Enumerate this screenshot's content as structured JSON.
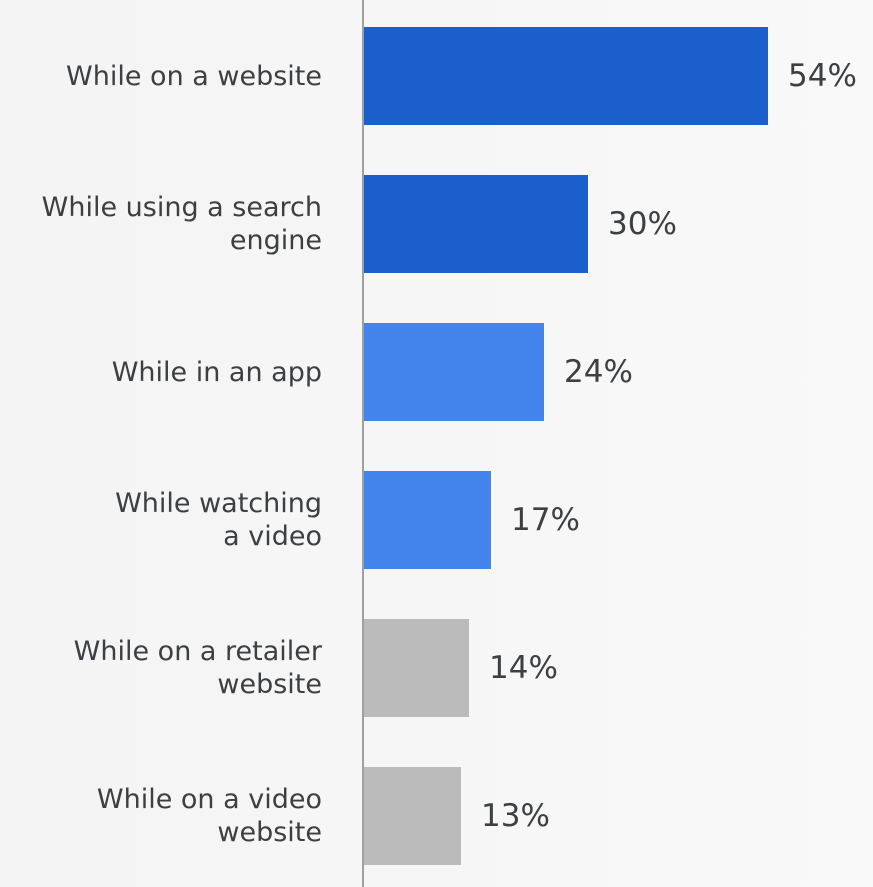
{
  "chart_data": {
    "type": "bar",
    "orientation": "horizontal",
    "categories": [
      "While on a website",
      "While using a search\nengine",
      "While in an app",
      "While watching\na video",
      "While on a retailer\nwebsite",
      "While on a video\nwebsite"
    ],
    "values": [
      54,
      30,
      24,
      17,
      14,
      13
    ],
    "value_labels": [
      "54%",
      "30%",
      "24%",
      "17%",
      "14%",
      "13%"
    ],
    "bar_colors": [
      "#1a5fcc",
      "#1a5fcc",
      "#4383ec",
      "#4383ec",
      "#bbbbbb",
      "#bbbbbb"
    ],
    "axis_color": "#a0a0a0",
    "grid": false,
    "legend": "none",
    "xlim": [
      0,
      54
    ]
  }
}
